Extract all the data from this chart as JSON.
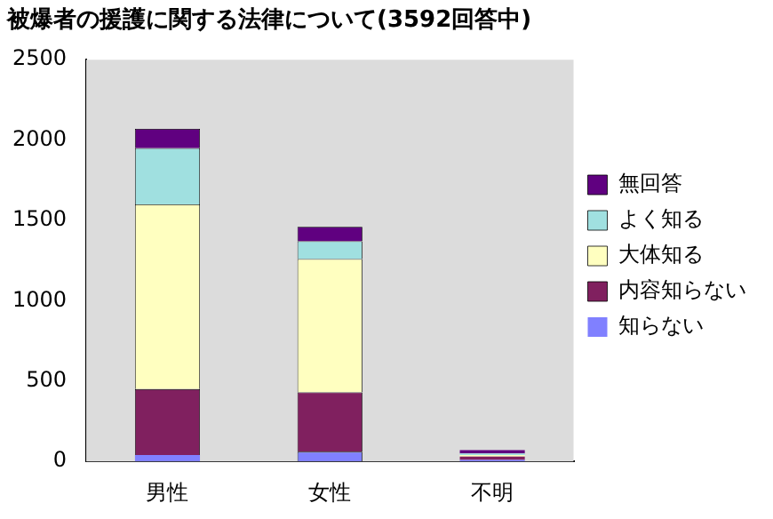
{
  "chart_data": {
    "type": "bar",
    "title": "被爆者の援護に関する法律について(3592回答中)",
    "categories": [
      "男性",
      "女性",
      "不明"
    ],
    "stacked": true,
    "ylim": [
      0,
      2500
    ],
    "yticks": [
      0,
      500,
      1000,
      1500,
      2000,
      2500
    ],
    "grid": false,
    "legend": "right",
    "series": [
      {
        "name": "知らない",
        "color": "#8080ff",
        "values": [
          40,
          60,
          10
        ]
      },
      {
        "name": "内容知らない",
        "color": "#80205f",
        "values": [
          410,
          370,
          20
        ]
      },
      {
        "name": "大体知る",
        "color": "#ffffc0",
        "values": [
          1150,
          830,
          10
        ]
      },
      {
        "name": "よく知る",
        "color": "#a0e0e0",
        "values": [
          350,
          110,
          10
        ]
      },
      {
        "name": "無回答",
        "color": "#600080",
        "values": [
          120,
          90,
          20
        ]
      }
    ]
  }
}
